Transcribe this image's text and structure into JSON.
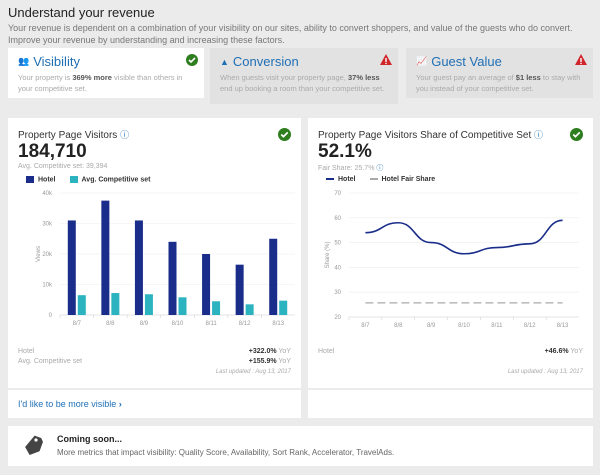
{
  "header": {
    "title": "Understand your revenue",
    "description": "Your revenue is dependent on a combination of your visibility on our sites, ability to convert shoppers, and value of the guests who do convert. Improve your revenue by understanding and increasing these factors."
  },
  "factors": [
    {
      "title": "Visibility",
      "icon": "users-icon",
      "status": "check",
      "pre": "Your property is ",
      "bold": "369% more",
      "post": " visible than others in your competitive set."
    },
    {
      "title": "Conversion",
      "icon": "bell-icon",
      "status": "warning",
      "pre": "When guests visit your property page, ",
      "bold": "37% less",
      "post": " end up booking a room than your competitive set."
    },
    {
      "title": "Guest Value",
      "icon": "chart-icon",
      "status": "warning",
      "pre": "Your guest pay an average of ",
      "bold": "$1 less",
      "post": " to stay with you instead of your competitive set."
    }
  ],
  "colors": {
    "hotel": "#1a2d8a",
    "comp": "#2bb3c0",
    "check": "#2e7d1e",
    "warning": "#d0262b",
    "link": "#1f6fb5"
  },
  "visitors": {
    "title": "Property Page Visitors",
    "value": "184,710",
    "sub": "Avg. Competitive set: 39,394",
    "rows": [
      {
        "label": "Hotel",
        "value": "+322.0%",
        "suffix": " YoY"
      },
      {
        "label": "Avg. Competitive set",
        "value": "+155.9%",
        "suffix": " YoY"
      }
    ],
    "updated": "Last updated : Aug 13, 2017",
    "link": "I'd like to be more visible"
  },
  "share": {
    "title": "Property Page Visitors Share of Competitive Set",
    "value": "52.1%",
    "sub": "Fair Share: 25.7%",
    "rows": [
      {
        "label": "Hotel",
        "value": "+46.6%",
        "suffix": " YoY"
      }
    ],
    "updated": "Last updated : Aug 13, 2017"
  },
  "chart_data": [
    {
      "type": "bar",
      "categories": [
        "8/7",
        "8/8",
        "8/9",
        "8/10",
        "8/11",
        "8/12",
        "8/13"
      ],
      "ylabel": "Views",
      "ylim": [
        0,
        40000
      ],
      "yticks": [
        "0",
        "10k",
        "20k",
        "30k",
        "40k"
      ],
      "legend": "top-left",
      "grid": true,
      "series": [
        {
          "name": "Hotel",
          "values": [
            31000,
            37500,
            31000,
            24000,
            20000,
            16500,
            25000
          ]
        },
        {
          "name": "Avg. Competitive set",
          "values": [
            6500,
            7200,
            6800,
            5800,
            4500,
            3500,
            4700
          ]
        }
      ]
    },
    {
      "type": "line",
      "categories": [
        "8/7",
        "8/8",
        "8/9",
        "8/10",
        "8/11",
        "8/12",
        "8/13"
      ],
      "ylabel": "Share (%)",
      "ylim": [
        20,
        70
      ],
      "yticks": [
        "20",
        "30",
        "40",
        "50",
        "60",
        "70"
      ],
      "legend": "top-left",
      "grid": true,
      "series": [
        {
          "name": "Hotel",
          "values": [
            54,
            58,
            50,
            45.5,
            48,
            49.5,
            59
          ]
        },
        {
          "name": "Hotel Fair Share",
          "values": [
            25.7,
            25.7,
            25.7,
            25.7,
            25.7,
            25.7,
            25.7
          ]
        }
      ]
    }
  ],
  "coming": {
    "title": "Coming soon...",
    "text": "More metrics that impact visibility: Quality Score, Availability, Sort Rank, Accelerator, TravelAds."
  }
}
